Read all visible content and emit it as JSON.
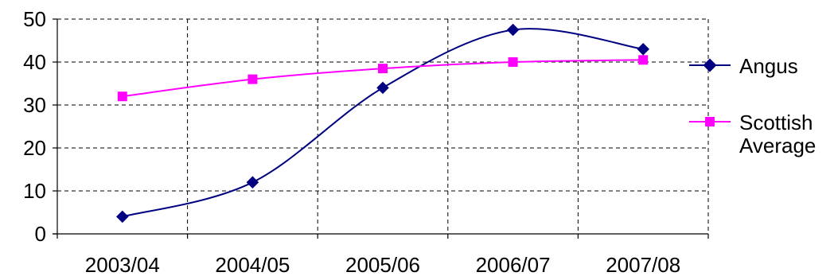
{
  "chart_data": {
    "type": "line",
    "title": "",
    "xlabel": "",
    "ylabel": "",
    "categories": [
      "2003/04",
      "2004/05",
      "2005/06",
      "2006/07",
      "2007/08"
    ],
    "ylim": [
      0,
      50
    ],
    "yticks": [
      "0",
      "10",
      "20",
      "30",
      "40",
      "50"
    ],
    "grid": true,
    "legend_position": "right",
    "series": [
      {
        "name": "Angus",
        "values": [
          4,
          12,
          34,
          47.5,
          43
        ],
        "color": "#000080",
        "marker": "diamond"
      },
      {
        "name": "Scottish Average",
        "legend_lines": [
          "Scottish",
          "Average"
        ],
        "values": [
          32,
          36,
          38.5,
          40,
          40.5
        ],
        "color": "#ff00ff",
        "marker": "square"
      }
    ]
  }
}
